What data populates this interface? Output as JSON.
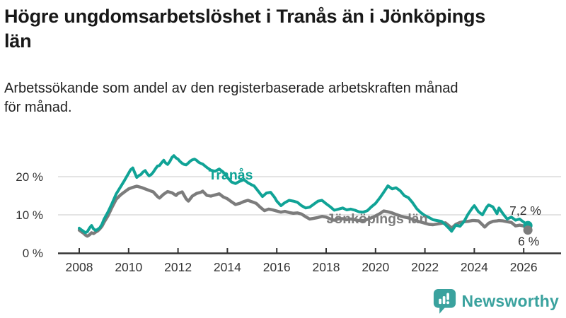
{
  "header": {
    "title": "Högre ungdomsarbetslöshet i Tranås än i Jönköpings län",
    "subtitle": "Arbetssökande som andel av den registerbaserade arbetskraften månad för månad."
  },
  "footer": {
    "brand": "Newsworthy"
  },
  "colors": {
    "tranas_teal": "#10A396",
    "jonkoping_gray": "#7C7C7C",
    "axis": "#333333",
    "grid": "#DCDCDC",
    "logo_teal": "#3AA29E",
    "title_text": "#181818"
  },
  "chart_data": {
    "type": "line",
    "title": "Högre ungdomsarbetslöshet i Tranås än i Jönköpings län",
    "subtitle": "Arbetssökande som andel av den registerbaserade arbetskraften månad för månad.",
    "unit": "%",
    "xlim": [
      2007.3,
      2027.5
    ],
    "ylim": [
      0,
      26.5
    ],
    "grid": "horizontal",
    "legend": "inline-labels",
    "x_ticks": [
      2008,
      2010,
      2012,
      2014,
      2016,
      2018,
      2020,
      2022,
      2024,
      2026
    ],
    "y_ticks": [
      {
        "value": 0,
        "label": "0 %"
      },
      {
        "value": 10,
        "label": "10 %"
      },
      {
        "value": 20,
        "label": "20 %"
      }
    ],
    "series": [
      {
        "name": "Jönköpings län",
        "color": "#7C7C7C",
        "end_label": "6 %",
        "last_value": 6.0,
        "points": [
          [
            2008.0,
            6.0
          ],
          [
            2008.08,
            5.6
          ],
          [
            2008.17,
            5.2
          ],
          [
            2008.25,
            4.7
          ],
          [
            2008.33,
            4.4
          ],
          [
            2008.42,
            4.8
          ],
          [
            2008.5,
            5.3
          ],
          [
            2008.58,
            5.1
          ],
          [
            2008.67,
            5.5
          ],
          [
            2008.75,
            5.8
          ],
          [
            2008.83,
            6.3
          ],
          [
            2008.92,
            7.0
          ],
          [
            2009.0,
            8.0
          ],
          [
            2009.17,
            9.8
          ],
          [
            2009.33,
            12.0
          ],
          [
            2009.5,
            14.1
          ],
          [
            2009.67,
            15.2
          ],
          [
            2009.83,
            16.0
          ],
          [
            2010.0,
            16.8
          ],
          [
            2010.17,
            17.2
          ],
          [
            2010.33,
            17.5
          ],
          [
            2010.5,
            17.2
          ],
          [
            2010.67,
            16.8
          ],
          [
            2010.83,
            16.4
          ],
          [
            2011.0,
            16.0
          ],
          [
            2011.17,
            14.8
          ],
          [
            2011.25,
            14.4
          ],
          [
            2011.42,
            15.4
          ],
          [
            2011.58,
            16.1
          ],
          [
            2011.75,
            15.8
          ],
          [
            2011.92,
            15.1
          ],
          [
            2012.0,
            15.6
          ],
          [
            2012.17,
            16.0
          ],
          [
            2012.33,
            14.2
          ],
          [
            2012.42,
            13.6
          ],
          [
            2012.58,
            14.9
          ],
          [
            2012.75,
            15.6
          ],
          [
            2012.92,
            15.9
          ],
          [
            2013.0,
            16.2
          ],
          [
            2013.17,
            15.1
          ],
          [
            2013.33,
            14.9
          ],
          [
            2013.5,
            15.2
          ],
          [
            2013.67,
            15.5
          ],
          [
            2013.83,
            14.7
          ],
          [
            2014.0,
            14.2
          ],
          [
            2014.17,
            13.4
          ],
          [
            2014.33,
            12.7
          ],
          [
            2014.5,
            13.0
          ],
          [
            2014.67,
            13.5
          ],
          [
            2014.83,
            13.8
          ],
          [
            2015.0,
            13.4
          ],
          [
            2015.17,
            13.0
          ],
          [
            2015.33,
            12.0
          ],
          [
            2015.5,
            11.1
          ],
          [
            2015.67,
            11.5
          ],
          [
            2015.83,
            11.3
          ],
          [
            2016.0,
            11.0
          ],
          [
            2016.17,
            10.7
          ],
          [
            2016.33,
            10.9
          ],
          [
            2016.5,
            10.6
          ],
          [
            2016.67,
            10.4
          ],
          [
            2016.83,
            10.5
          ],
          [
            2017.0,
            10.2
          ],
          [
            2017.17,
            9.5
          ],
          [
            2017.33,
            8.9
          ],
          [
            2017.5,
            9.1
          ],
          [
            2017.67,
            9.3
          ],
          [
            2017.83,
            9.6
          ],
          [
            2018.0,
            9.4
          ],
          [
            2018.17,
            8.9
          ],
          [
            2018.33,
            8.6
          ],
          [
            2018.5,
            8.9
          ],
          [
            2018.67,
            9.0
          ],
          [
            2018.83,
            8.7
          ],
          [
            2019.0,
            8.9
          ],
          [
            2019.17,
            8.7
          ],
          [
            2019.33,
            8.5
          ],
          [
            2019.5,
            8.5
          ],
          [
            2019.67,
            8.8
          ],
          [
            2019.83,
            9.2
          ],
          [
            2020.0,
            9.7
          ],
          [
            2020.17,
            10.3
          ],
          [
            2020.33,
            11.0
          ],
          [
            2020.5,
            10.8
          ],
          [
            2020.67,
            10.5
          ],
          [
            2020.83,
            10.1
          ],
          [
            2021.0,
            9.7
          ],
          [
            2021.17,
            9.4
          ],
          [
            2021.33,
            9.2
          ],
          [
            2021.5,
            8.8
          ],
          [
            2021.67,
            8.4
          ],
          [
            2021.83,
            8.1
          ],
          [
            2022.0,
            7.8
          ],
          [
            2022.17,
            7.5
          ],
          [
            2022.33,
            7.4
          ],
          [
            2022.5,
            7.6
          ],
          [
            2022.67,
            7.8
          ],
          [
            2022.83,
            7.9
          ],
          [
            2023.0,
            7.0
          ],
          [
            2023.08,
            6.5
          ],
          [
            2023.25,
            7.5
          ],
          [
            2023.42,
            8.0
          ],
          [
            2023.58,
            8.2
          ],
          [
            2023.75,
            8.3
          ],
          [
            2023.92,
            8.5
          ],
          [
            2024.0,
            8.5
          ],
          [
            2024.17,
            8.4
          ],
          [
            2024.33,
            7.4
          ],
          [
            2024.42,
            6.8
          ],
          [
            2024.58,
            7.8
          ],
          [
            2024.75,
            8.3
          ],
          [
            2024.92,
            8.4
          ],
          [
            2025.0,
            8.5
          ],
          [
            2025.17,
            8.4
          ],
          [
            2025.33,
            8.2
          ],
          [
            2025.5,
            8.0
          ],
          [
            2025.67,
            7.1
          ],
          [
            2025.83,
            7.3
          ],
          [
            2026.0,
            7.1
          ],
          [
            2026.17,
            6.0
          ]
        ]
      },
      {
        "name": "Tranås",
        "color": "#10A396",
        "end_label": "7,2 %",
        "last_value": 7.2,
        "points": [
          [
            2008.0,
            6.5
          ],
          [
            2008.08,
            6.1
          ],
          [
            2008.17,
            5.7
          ],
          [
            2008.25,
            5.3
          ],
          [
            2008.33,
            5.6
          ],
          [
            2008.42,
            6.6
          ],
          [
            2008.5,
            7.2
          ],
          [
            2008.58,
            6.3
          ],
          [
            2008.67,
            5.9
          ],
          [
            2008.75,
            6.2
          ],
          [
            2008.83,
            6.6
          ],
          [
            2008.92,
            7.5
          ],
          [
            2009.0,
            8.8
          ],
          [
            2009.17,
            10.8
          ],
          [
            2009.33,
            13.0
          ],
          [
            2009.5,
            15.5
          ],
          [
            2009.67,
            17.3
          ],
          [
            2009.83,
            19.0
          ],
          [
            2010.0,
            20.9
          ],
          [
            2010.08,
            21.8
          ],
          [
            2010.17,
            22.3
          ],
          [
            2010.25,
            21.0
          ],
          [
            2010.33,
            19.8
          ],
          [
            2010.42,
            20.3
          ],
          [
            2010.5,
            20.6
          ],
          [
            2010.58,
            21.2
          ],
          [
            2010.67,
            21.6
          ],
          [
            2010.75,
            20.8
          ],
          [
            2010.83,
            20.2
          ],
          [
            2010.92,
            20.6
          ],
          [
            2011.0,
            21.2
          ],
          [
            2011.08,
            22.0
          ],
          [
            2011.17,
            22.8
          ],
          [
            2011.25,
            22.9
          ],
          [
            2011.33,
            23.6
          ],
          [
            2011.42,
            24.3
          ],
          [
            2011.5,
            23.6
          ],
          [
            2011.58,
            23.2
          ],
          [
            2011.67,
            24.0
          ],
          [
            2011.75,
            25.0
          ],
          [
            2011.83,
            25.5
          ],
          [
            2011.92,
            24.9
          ],
          [
            2012.0,
            24.6
          ],
          [
            2012.08,
            24.0
          ],
          [
            2012.17,
            23.5
          ],
          [
            2012.25,
            23.2
          ],
          [
            2012.33,
            23.1
          ],
          [
            2012.42,
            23.6
          ],
          [
            2012.5,
            24.1
          ],
          [
            2012.58,
            24.4
          ],
          [
            2012.67,
            24.6
          ],
          [
            2012.75,
            24.3
          ],
          [
            2012.83,
            23.8
          ],
          [
            2012.92,
            23.5
          ],
          [
            2013.0,
            23.3
          ],
          [
            2013.17,
            22.4
          ],
          [
            2013.33,
            21.7
          ],
          [
            2013.5,
            21.4
          ],
          [
            2013.67,
            22.0
          ],
          [
            2013.83,
            21.2
          ],
          [
            2014.0,
            19.8
          ],
          [
            2014.17,
            18.6
          ],
          [
            2014.33,
            18.2
          ],
          [
            2014.5,
            18.8
          ],
          [
            2014.67,
            19.2
          ],
          [
            2014.83,
            18.4
          ],
          [
            2015.0,
            17.8
          ],
          [
            2015.08,
            17.6
          ],
          [
            2015.25,
            16.2
          ],
          [
            2015.42,
            14.8
          ],
          [
            2015.58,
            15.7
          ],
          [
            2015.75,
            15.9
          ],
          [
            2015.92,
            14.5
          ],
          [
            2016.0,
            13.6
          ],
          [
            2016.17,
            12.4
          ],
          [
            2016.33,
            13.2
          ],
          [
            2016.5,
            13.8
          ],
          [
            2016.67,
            13.6
          ],
          [
            2016.83,
            13.3
          ],
          [
            2017.0,
            12.4
          ],
          [
            2017.17,
            11.8
          ],
          [
            2017.33,
            12.0
          ],
          [
            2017.5,
            12.8
          ],
          [
            2017.67,
            13.6
          ],
          [
            2017.83,
            13.8
          ],
          [
            2018.0,
            12.9
          ],
          [
            2018.17,
            12.1
          ],
          [
            2018.33,
            11.2
          ],
          [
            2018.5,
            11.5
          ],
          [
            2018.67,
            11.8
          ],
          [
            2018.83,
            11.3
          ],
          [
            2019.0,
            11.5
          ],
          [
            2019.17,
            11.2
          ],
          [
            2019.33,
            10.8
          ],
          [
            2019.5,
            10.7
          ],
          [
            2019.67,
            11.1
          ],
          [
            2019.83,
            12.1
          ],
          [
            2020.0,
            13.0
          ],
          [
            2020.17,
            14.4
          ],
          [
            2020.33,
            15.9
          ],
          [
            2020.5,
            17.6
          ],
          [
            2020.67,
            16.8
          ],
          [
            2020.83,
            17.1
          ],
          [
            2021.0,
            16.3
          ],
          [
            2021.17,
            15.0
          ],
          [
            2021.33,
            14.5
          ],
          [
            2021.5,
            13.2
          ],
          [
            2021.67,
            11.6
          ],
          [
            2021.83,
            10.6
          ],
          [
            2022.0,
            9.8
          ],
          [
            2022.17,
            9.3
          ],
          [
            2022.33,
            8.7
          ],
          [
            2022.5,
            8.5
          ],
          [
            2022.67,
            8.3
          ],
          [
            2022.83,
            7.4
          ],
          [
            2023.0,
            6.3
          ],
          [
            2023.08,
            5.7
          ],
          [
            2023.25,
            7.3
          ],
          [
            2023.42,
            7.0
          ],
          [
            2023.58,
            8.2
          ],
          [
            2023.75,
            10.2
          ],
          [
            2023.92,
            11.8
          ],
          [
            2024.0,
            12.4
          ],
          [
            2024.17,
            10.8
          ],
          [
            2024.33,
            10.0
          ],
          [
            2024.5,
            12.0
          ],
          [
            2024.58,
            12.6
          ],
          [
            2024.75,
            12.1
          ],
          [
            2024.92,
            10.3
          ],
          [
            2025.0,
            11.8
          ],
          [
            2025.17,
            10.2
          ],
          [
            2025.33,
            8.9
          ],
          [
            2025.5,
            9.4
          ],
          [
            2025.67,
            8.6
          ],
          [
            2025.83,
            8.9
          ],
          [
            2026.0,
            8.1
          ],
          [
            2026.17,
            7.2
          ]
        ]
      }
    ]
  }
}
